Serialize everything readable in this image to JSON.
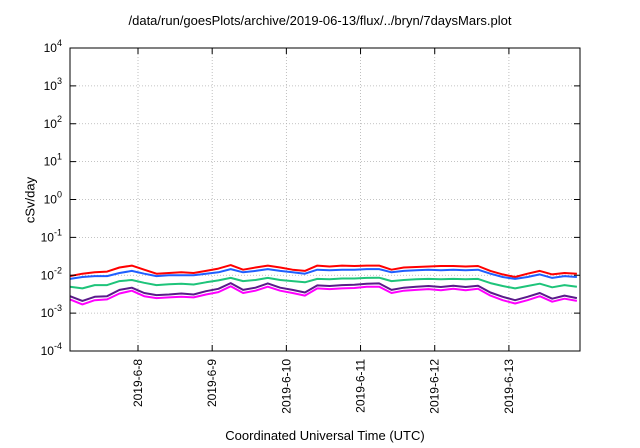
{
  "chart_data": {
    "type": "line",
    "title": "/data/run/goesPlots/archive/2019-06-13/flux/../bryn/7daysMars.plot",
    "xlabel": "Coordinated Universal Time (UTC)",
    "ylabel": "cSv/day",
    "yscale": "log",
    "ylim": [
      0.0001,
      10000
    ],
    "y_ticks": [
      {
        "exp": -4,
        "base": "10",
        "sup": "-4"
      },
      {
        "exp": -3,
        "base": "10",
        "sup": "-3"
      },
      {
        "exp": -2,
        "base": "10",
        "sup": "-2"
      },
      {
        "exp": -1,
        "base": "10",
        "sup": "-1"
      },
      {
        "exp": 0,
        "base": "10",
        "sup": "0"
      },
      {
        "exp": 1,
        "base": "10",
        "sup": "1"
      },
      {
        "exp": 2,
        "base": "10",
        "sup": "2"
      },
      {
        "exp": 3,
        "base": "10",
        "sup": "3"
      },
      {
        "exp": 4,
        "base": "10",
        "sup": "4"
      }
    ],
    "xlim": [
      "2019-06-07T02:00",
      "2019-06-13T23:00"
    ],
    "x_ticks": [
      "2019-6-8",
      "2019-6-9",
      "2019-6-10",
      "2019-6-11",
      "2019-6-12",
      "2019-6-13"
    ],
    "x_tick_dates": [
      "2019-06-08",
      "2019-06-09",
      "2019-06-10",
      "2019-06-11",
      "2019-06-12",
      "2019-06-13"
    ],
    "grid": true,
    "x": [
      "2019-06-07T02:00",
      "2019-06-07T06:00",
      "2019-06-07T10:00",
      "2019-06-07T14:00",
      "2019-06-07T18:00",
      "2019-06-07T22:00",
      "2019-06-08T02:00",
      "2019-06-08T06:00",
      "2019-06-08T10:00",
      "2019-06-08T14:00",
      "2019-06-08T18:00",
      "2019-06-08T22:00",
      "2019-06-09T02:00",
      "2019-06-09T06:00",
      "2019-06-09T10:00",
      "2019-06-09T14:00",
      "2019-06-09T18:00",
      "2019-06-09T22:00",
      "2019-06-10T02:00",
      "2019-06-10T06:00",
      "2019-06-10T10:00",
      "2019-06-10T14:00",
      "2019-06-10T18:00",
      "2019-06-10T22:00",
      "2019-06-11T02:00",
      "2019-06-11T06:00",
      "2019-06-11T10:00",
      "2019-06-11T14:00",
      "2019-06-11T18:00",
      "2019-06-11T22:00",
      "2019-06-12T02:00",
      "2019-06-12T06:00",
      "2019-06-12T10:00",
      "2019-06-12T14:00",
      "2019-06-12T18:00",
      "2019-06-12T22:00",
      "2019-06-13T02:00",
      "2019-06-13T06:00",
      "2019-06-13T10:00",
      "2019-06-13T14:00",
      "2019-06-13T18:00",
      "2019-06-13T22:00"
    ],
    "series": [
      {
        "color": "#ff0000",
        "values": [
          0.0095,
          0.011,
          0.012,
          0.0125,
          0.016,
          0.018,
          0.014,
          0.011,
          0.0115,
          0.012,
          0.0115,
          0.013,
          0.015,
          0.0185,
          0.014,
          0.016,
          0.018,
          0.016,
          0.014,
          0.013,
          0.018,
          0.017,
          0.018,
          0.0175,
          0.018,
          0.018,
          0.014,
          0.016,
          0.0165,
          0.017,
          0.0175,
          0.0175,
          0.017,
          0.0175,
          0.013,
          0.0105,
          0.009,
          0.011,
          0.013,
          0.0105,
          0.0115,
          0.011
        ]
      },
      {
        "color": "#1f5fff",
        "values": [
          0.008,
          0.009,
          0.0095,
          0.0095,
          0.0115,
          0.013,
          0.011,
          0.0095,
          0.01,
          0.01,
          0.01,
          0.011,
          0.012,
          0.0145,
          0.012,
          0.013,
          0.0145,
          0.013,
          0.012,
          0.011,
          0.014,
          0.0135,
          0.014,
          0.014,
          0.0145,
          0.0145,
          0.012,
          0.013,
          0.0135,
          0.014,
          0.0135,
          0.014,
          0.0135,
          0.014,
          0.011,
          0.009,
          0.008,
          0.009,
          0.0105,
          0.0085,
          0.0095,
          0.009
        ]
      },
      {
        "color": "#1ec47a",
        "values": [
          0.005,
          0.0045,
          0.0055,
          0.0055,
          0.007,
          0.0075,
          0.0063,
          0.0055,
          0.0058,
          0.006,
          0.0057,
          0.0065,
          0.0073,
          0.0085,
          0.007,
          0.0075,
          0.0085,
          0.0075,
          0.007,
          0.0065,
          0.008,
          0.0078,
          0.0082,
          0.0082,
          0.0085,
          0.0086,
          0.007,
          0.0075,
          0.0078,
          0.008,
          0.0078,
          0.008,
          0.0078,
          0.008,
          0.0062,
          0.0052,
          0.0045,
          0.0052,
          0.006,
          0.0048,
          0.0055,
          0.005
        ]
      },
      {
        "color": "#5a1a8a",
        "values": [
          0.0028,
          0.0021,
          0.0027,
          0.0028,
          0.0041,
          0.0047,
          0.0034,
          0.003,
          0.0031,
          0.0033,
          0.0031,
          0.0038,
          0.0044,
          0.0062,
          0.0041,
          0.0047,
          0.0061,
          0.0047,
          0.0041,
          0.0035,
          0.0054,
          0.0052,
          0.0055,
          0.0056,
          0.006,
          0.0061,
          0.0041,
          0.0047,
          0.005,
          0.0052,
          0.0049,
          0.0053,
          0.0049,
          0.0053,
          0.0035,
          0.0027,
          0.0022,
          0.0027,
          0.0034,
          0.0024,
          0.0029,
          0.0025
        ]
      },
      {
        "color": "#ff00ff",
        "values": [
          0.0023,
          0.0017,
          0.0022,
          0.0023,
          0.0033,
          0.0039,
          0.0028,
          0.0025,
          0.0026,
          0.0027,
          0.0026,
          0.0031,
          0.0036,
          0.0051,
          0.0034,
          0.0039,
          0.005,
          0.0039,
          0.0034,
          0.0029,
          0.0045,
          0.0043,
          0.0045,
          0.0046,
          0.005,
          0.005,
          0.0034,
          0.0039,
          0.0041,
          0.0043,
          0.004,
          0.0044,
          0.004,
          0.0044,
          0.0029,
          0.0022,
          0.0018,
          0.0022,
          0.0028,
          0.002,
          0.0024,
          0.0021
        ]
      }
    ]
  }
}
